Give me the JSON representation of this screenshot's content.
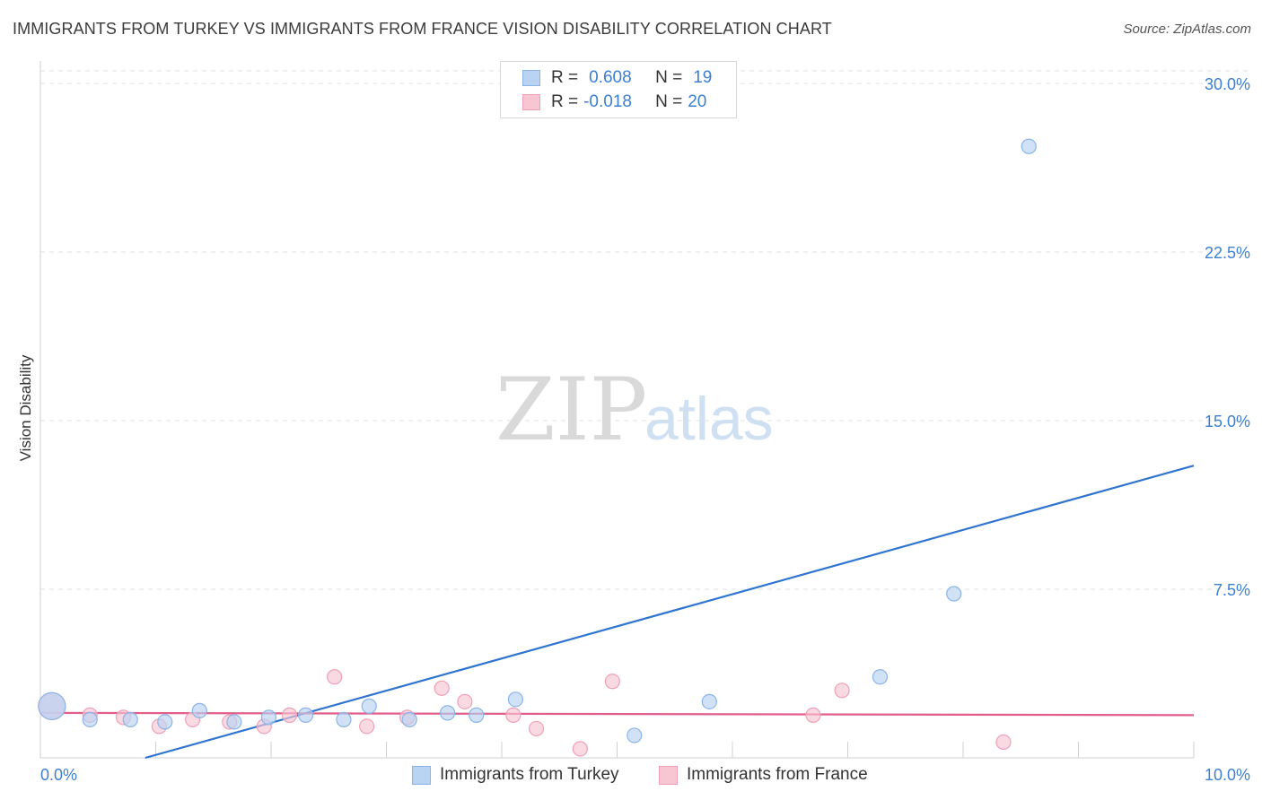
{
  "title": "IMMIGRANTS FROM TURKEY VS IMMIGRANTS FROM FRANCE VISION DISABILITY CORRELATION CHART",
  "source": "Source: ZipAtlas.com",
  "watermark": {
    "zip": "ZIP",
    "atlas": "atlas"
  },
  "legend": {
    "turkey": {
      "r_label": "R =",
      "r_value": "0.608",
      "n_label": "N =",
      "n_value": "19"
    },
    "france": {
      "r_label": "R =",
      "r_value": "-0.018",
      "n_label": "N =",
      "n_value": "20"
    }
  },
  "colors": {
    "turkey_fill": "#b9d3f3",
    "turkey_stroke": "#8ab4e8",
    "turkey_line": "#2f74d0",
    "france_fill": "#f8c6d3",
    "france_stroke": "#efa0b7",
    "france_line": "#e35d8a",
    "accent": "#3d7fd1"
  },
  "chart_data": {
    "type": "scatter",
    "title": "IMMIGRANTS FROM TURKEY VS IMMIGRANTS FROM FRANCE VISION DISABILITY CORRELATION CHART",
    "xlabel": "",
    "ylabel": "Vision Disability",
    "xlim": [
      0,
      10
    ],
    "ylim": [
      0,
      31
    ],
    "x_tick_labels": [
      "0.0%",
      "10.0%"
    ],
    "y_ticks": [
      7.5,
      15.0,
      22.5,
      30.0
    ],
    "y_tick_labels": [
      "7.5%",
      "15.0%",
      "22.5%",
      "30.0%"
    ],
    "grid": true,
    "series": [
      {
        "name": "Immigrants from Turkey",
        "points": [
          [
            0.1,
            2.3
          ],
          [
            0.43,
            1.7
          ],
          [
            0.78,
            1.7
          ],
          [
            1.08,
            1.6
          ],
          [
            1.38,
            2.1
          ],
          [
            1.68,
            1.6
          ],
          [
            1.98,
            1.8
          ],
          [
            2.3,
            1.9
          ],
          [
            2.63,
            1.7
          ],
          [
            2.85,
            2.3
          ],
          [
            3.2,
            1.7
          ],
          [
            3.53,
            2.0
          ],
          [
            3.78,
            1.9
          ],
          [
            4.12,
            2.6
          ],
          [
            5.15,
            1.0
          ],
          [
            5.8,
            2.5
          ],
          [
            7.28,
            3.6
          ],
          [
            7.92,
            7.3
          ],
          [
            8.57,
            27.2
          ]
        ],
        "trend": {
          "x": [
            0,
            10
          ],
          "y": [
            -1.3,
            13.0
          ]
        }
      },
      {
        "name": "Immigrants from France",
        "points": [
          [
            0.1,
            2.3
          ],
          [
            0.43,
            1.9
          ],
          [
            0.72,
            1.8
          ],
          [
            1.03,
            1.4
          ],
          [
            1.32,
            1.7
          ],
          [
            1.64,
            1.6
          ],
          [
            1.94,
            1.4
          ],
          [
            2.16,
            1.9
          ],
          [
            2.55,
            3.6
          ],
          [
            2.83,
            1.4
          ],
          [
            3.18,
            1.8
          ],
          [
            3.48,
            3.1
          ],
          [
            3.68,
            2.5
          ],
          [
            4.1,
            1.9
          ],
          [
            4.3,
            1.3
          ],
          [
            4.68,
            0.4
          ],
          [
            4.96,
            3.4
          ],
          [
            6.7,
            1.9
          ],
          [
            6.95,
            3.0
          ],
          [
            8.35,
            0.7
          ]
        ],
        "trend": {
          "x": [
            0,
            10
          ],
          "y": [
            2.0,
            1.9
          ]
        }
      }
    ]
  }
}
